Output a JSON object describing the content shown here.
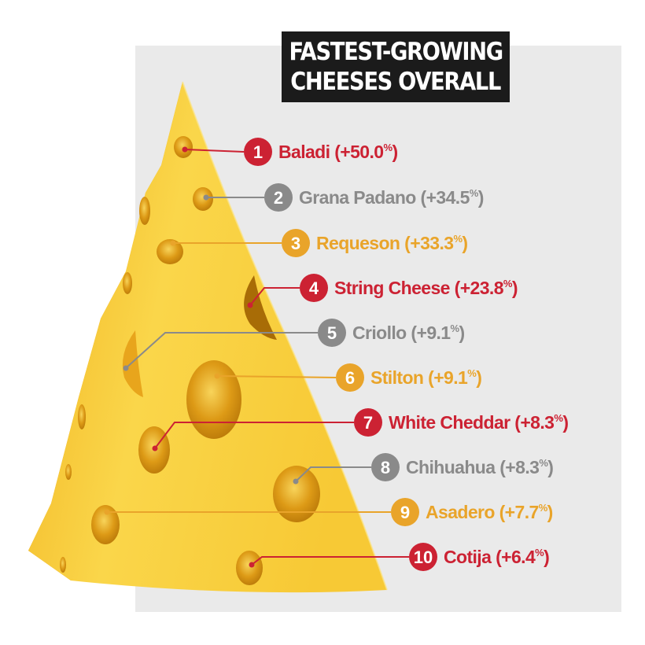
{
  "chart_data": {
    "type": "bar",
    "title_lines": [
      "FASTEST-GROWING",
      "CHEESES OVERALL"
    ],
    "items": [
      {
        "rank": "1",
        "name": "Baladi",
        "value": 50.0,
        "display": "+50.0",
        "color": "#cc2233"
      },
      {
        "rank": "2",
        "name": "Grana Padano",
        "value": 34.5,
        "display": "+34.5",
        "color": "#8a8a8a"
      },
      {
        "rank": "3",
        "name": "Requeson",
        "value": 33.3,
        "display": "+33.3",
        "color": "#e9a42a"
      },
      {
        "rank": "4",
        "name": "String Cheese",
        "value": 23.8,
        "display": "+23.8",
        "color": "#cc2233"
      },
      {
        "rank": "5",
        "name": "Criollo",
        "value": 9.1,
        "display": "+9.1",
        "color": "#8a8a8a"
      },
      {
        "rank": "6",
        "name": "Stilton",
        "value": 9.1,
        "display": "+9.1",
        "color": "#e9a42a"
      },
      {
        "rank": "7",
        "name": "White Cheddar",
        "value": 8.3,
        "display": "+8.3",
        "color": "#cc2233"
      },
      {
        "rank": "8",
        "name": "Chihuahua",
        "value": 8.3,
        "display": "+8.3",
        "color": "#8a8a8a"
      },
      {
        "rank": "9",
        "name": "Asadero",
        "value": 7.7,
        "display": "+7.7",
        "color": "#e9a42a"
      },
      {
        "rank": "10",
        "name": "Cotija",
        "value": 6.4,
        "display": "+6.4",
        "color": "#cc2233"
      }
    ],
    "unit": "%",
    "palette": {
      "red": "#cc2233",
      "gray": "#8a8a8a",
      "orange": "#e9a42a",
      "cheese": "#f6c733"
    }
  }
}
